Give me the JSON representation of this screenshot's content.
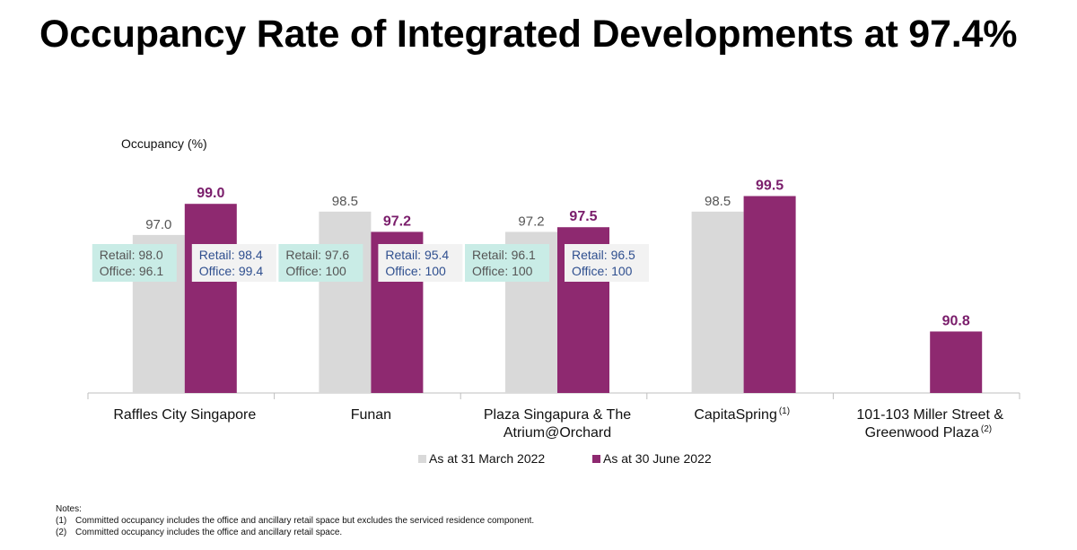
{
  "title": "Occupancy Rate of Integrated Developments at 97.4%",
  "colors": {
    "march": "#d9d9d9",
    "june": "#8e2970",
    "june_label": "#7a1d6b",
    "box_march_bg": "#c9ece6",
    "box_june_bg": "#f2f2f2",
    "box_june_text": "#2f4f8f"
  },
  "chart_data": {
    "type": "bar",
    "ylabel": "Occupancy (%)",
    "categories": [
      {
        "lines": [
          "Raffles City Singapore"
        ],
        "sup": ""
      },
      {
        "lines": [
          "Funan"
        ],
        "sup": ""
      },
      {
        "lines": [
          "Plaza Singapura & The",
          "Atrium@Orchard"
        ],
        "sup": ""
      },
      {
        "lines": [
          "CapitaSpring"
        ],
        "sup": "(1)"
      },
      {
        "lines": [
          "101-103 Miller Street &",
          "Greenwood Plaza"
        ],
        "sup": "(2)"
      }
    ],
    "series": [
      {
        "name": "As at 31 March 2022",
        "values": [
          97.0,
          98.5,
          97.2,
          98.5,
          null
        ],
        "labels": [
          "97.0",
          "98.5",
          "97.2",
          "98.5",
          ""
        ]
      },
      {
        "name": "As at 30 June 2022",
        "values": [
          99.0,
          97.2,
          97.5,
          99.5,
          90.8
        ],
        "labels": [
          "99.0",
          "97.2",
          "97.5",
          "99.5",
          "90.8"
        ]
      }
    ],
    "breakdowns": [
      {
        "category": 0,
        "series": 0,
        "lines": [
          "Retail: 98.0",
          "Office: 96.1"
        ]
      },
      {
        "category": 0,
        "series": 1,
        "lines": [
          "Retail: 98.4",
          "Office: 99.4"
        ]
      },
      {
        "category": 1,
        "series": 0,
        "lines": [
          "Retail: 97.6",
          "Office: 100"
        ]
      },
      {
        "category": 1,
        "series": 1,
        "lines": [
          "Retail: 95.4",
          "Office: 100"
        ]
      },
      {
        "category": 2,
        "series": 0,
        "lines": [
          "Retail: 96.1",
          "Office: 100"
        ]
      },
      {
        "category": 2,
        "series": 1,
        "lines": [
          "Retail: 96.5",
          "Office: 100"
        ]
      }
    ],
    "legend_position": "bottom-center",
    "grid": false
  },
  "notes": {
    "heading": "Notes:",
    "items": [
      {
        "num": "(1)",
        "text": "Committed occupancy includes the office and ancillary retail space but excludes the serviced residence component."
      },
      {
        "num": "(2)",
        "text": "Committed occupancy includes the office and ancillary retail space."
      }
    ]
  }
}
